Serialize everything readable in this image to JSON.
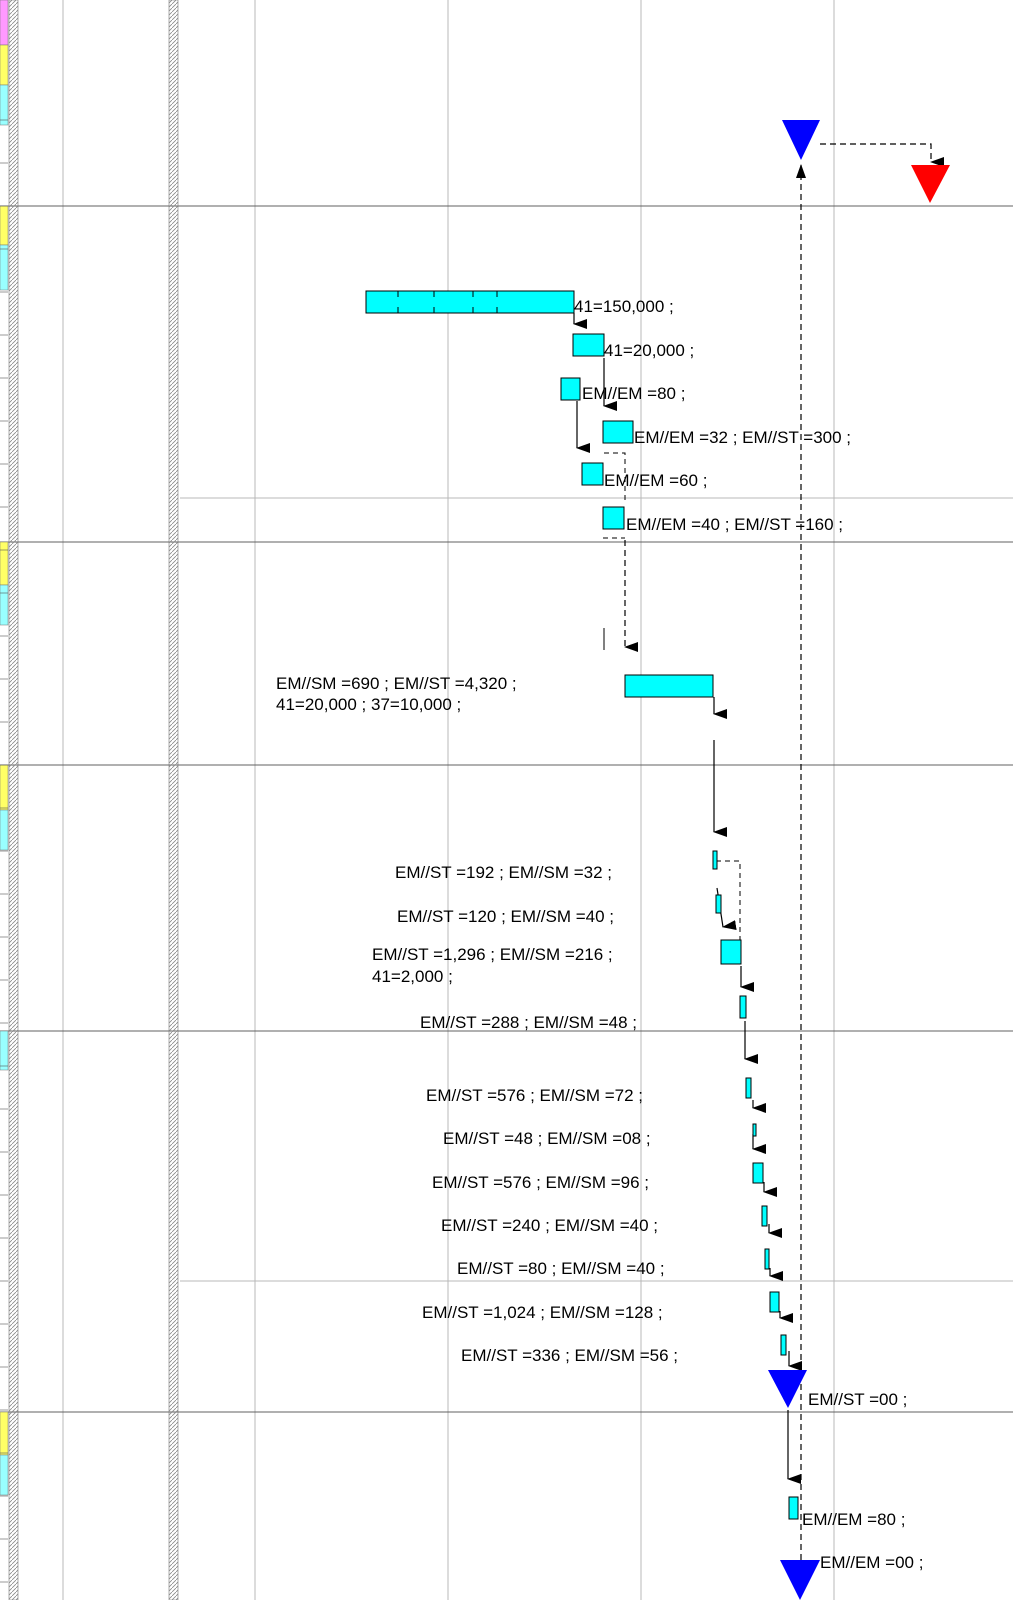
{
  "chart_data": {
    "type": "gantt",
    "colors": {
      "bar": "#00ffff",
      "milestone_start": "#0000ff",
      "milestone_end": "#ff0000",
      "row_left_band": [
        "#ff99ff",
        "#ffff66",
        "#99ffff"
      ]
    },
    "tasks": [
      {
        "id": "t1",
        "label": "41=150,000    ;"
      },
      {
        "id": "t2",
        "label": "41=20,000     ;"
      },
      {
        "id": "t3",
        "label": "EM//EM   =80     ;"
      },
      {
        "id": "t4",
        "label": "EM//EM   =32     ; EM//ST   =300     ;"
      },
      {
        "id": "t5",
        "label": "EM//EM   =60     ;"
      },
      {
        "id": "t6",
        "label": "EM//EM   =40     ; EM//ST   =160     ;"
      },
      {
        "id": "t7",
        "label": "EM//SM   =690     ; EM//ST   =4,320     ;",
        "label2": "41=20,000     ; 37=10,000     ;"
      },
      {
        "id": "t8",
        "label": "EM//ST   =192     ; EM//SM   =32     ;"
      },
      {
        "id": "t9",
        "label": "EM//ST   =120     ; EM//SM   =40     ;"
      },
      {
        "id": "t10",
        "label": "EM//ST   =1,296     ; EM//SM   =216     ;",
        "label2": "41=2,000     ;"
      },
      {
        "id": "t11",
        "label": "EM//ST   =288     ; EM//SM   =48     ;"
      },
      {
        "id": "t12",
        "label": "EM//ST   =576     ; EM//SM   =72     ;"
      },
      {
        "id": "t13",
        "label": "EM//ST   =48     ; EM//SM   =08     ;"
      },
      {
        "id": "t14",
        "label": "EM//ST   =576     ; EM//SM   =96     ;"
      },
      {
        "id": "t15",
        "label": "EM//ST   =240     ; EM//SM   =40     ;"
      },
      {
        "id": "t16",
        "label": "EM//ST   =80     ; EM//SM   =40     ;"
      },
      {
        "id": "t17",
        "label": "EM//ST   =1,024     ; EM//SM   =128     ;"
      },
      {
        "id": "t18",
        "label": "EM//ST   =336     ; EM//SM   =56     ;"
      },
      {
        "id": "m1",
        "label": "EM//ST   =00     ;"
      },
      {
        "id": "t19",
        "label": "EM//EM   =80     ;"
      },
      {
        "id": "m2",
        "label": "EM//EM   =00     ;"
      }
    ]
  }
}
